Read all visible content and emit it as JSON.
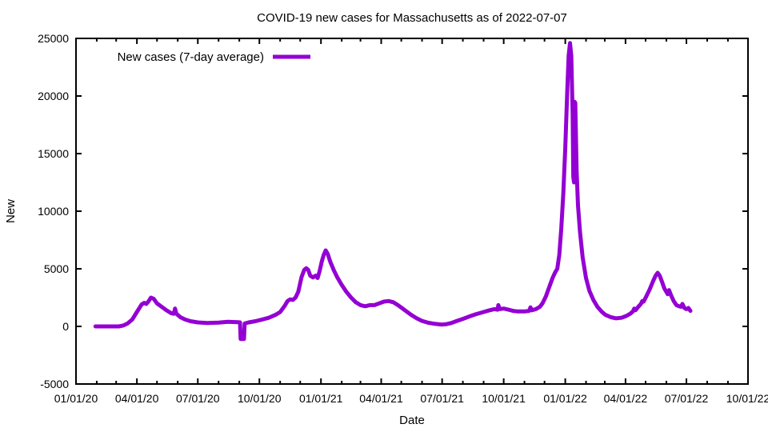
{
  "page": {
    "background": "#ffffff",
    "text_color": "#000000"
  },
  "chart_data": {
    "type": "line",
    "title": "COVID-19 new cases for Massachusetts as of 2022-07-07",
    "xlabel": "Date",
    "ylabel": "New",
    "grid": false,
    "border_color": "#000000",
    "line_width": 5,
    "legend": {
      "position": "top-left-inside",
      "entries": [
        {
          "label": "New cases (7-day average)",
          "color": "#9400d3"
        }
      ]
    },
    "axes": {
      "x": {
        "start_date": "2020-01-01",
        "end_date": "2022-10-01",
        "minor_tick_interval": "month",
        "major_ticks": [
          {
            "date": "2020-01-01",
            "label": "01/01/20"
          },
          {
            "date": "2020-04-01",
            "label": "04/01/20"
          },
          {
            "date": "2020-07-01",
            "label": "07/01/20"
          },
          {
            "date": "2020-10-01",
            "label": "10/01/20"
          },
          {
            "date": "2021-01-01",
            "label": "01/01/21"
          },
          {
            "date": "2021-04-01",
            "label": "04/01/21"
          },
          {
            "date": "2021-07-01",
            "label": "07/01/21"
          },
          {
            "date": "2021-10-01",
            "label": "10/01/21"
          },
          {
            "date": "2022-01-01",
            "label": "01/01/22"
          },
          {
            "date": "2022-04-01",
            "label": "04/01/22"
          },
          {
            "date": "2022-07-01",
            "label": "07/01/22"
          },
          {
            "date": "2022-10-01",
            "label": "10/01/22"
          }
        ]
      },
      "y": {
        "min": -5000,
        "max": 25000,
        "tick_step": 5000,
        "ticks": [
          -5000,
          0,
          5000,
          10000,
          15000,
          20000,
          25000
        ]
      }
    },
    "series": [
      {
        "name": "New cases (7-day average)",
        "color": "#9400d3",
        "points": [
          [
            "2020-01-30",
            0
          ],
          [
            "2020-03-05",
            0
          ],
          [
            "2020-03-12",
            80
          ],
          [
            "2020-03-18",
            250
          ],
          [
            "2020-03-25",
            600
          ],
          [
            "2020-04-01",
            1250
          ],
          [
            "2020-04-08",
            1900
          ],
          [
            "2020-04-12",
            2050
          ],
          [
            "2020-04-15",
            1950
          ],
          [
            "2020-04-18",
            2150
          ],
          [
            "2020-04-22",
            2500
          ],
          [
            "2020-04-26",
            2400
          ],
          [
            "2020-05-01",
            2000
          ],
          [
            "2020-05-08",
            1700
          ],
          [
            "2020-05-15",
            1400
          ],
          [
            "2020-05-22",
            1150
          ],
          [
            "2020-05-26",
            1100
          ],
          [
            "2020-05-28",
            1550
          ],
          [
            "2020-05-30",
            1100
          ],
          [
            "2020-06-05",
            800
          ],
          [
            "2020-06-12",
            600
          ],
          [
            "2020-06-20",
            450
          ],
          [
            "2020-07-01",
            350
          ],
          [
            "2020-07-15",
            300
          ],
          [
            "2020-08-01",
            330
          ],
          [
            "2020-08-15",
            400
          ],
          [
            "2020-08-30",
            370
          ],
          [
            "2020-09-02",
            350
          ],
          [
            "2020-09-03",
            -1100
          ],
          [
            "2020-09-08",
            -1100
          ],
          [
            "2020-09-09",
            250
          ],
          [
            "2020-09-15",
            350
          ],
          [
            "2020-09-25",
            450
          ],
          [
            "2020-10-05",
            600
          ],
          [
            "2020-10-15",
            750
          ],
          [
            "2020-10-25",
            1000
          ],
          [
            "2020-11-01",
            1250
          ],
          [
            "2020-11-08",
            1800
          ],
          [
            "2020-11-12",
            2200
          ],
          [
            "2020-11-16",
            2350
          ],
          [
            "2020-11-20",
            2300
          ],
          [
            "2020-11-24",
            2500
          ],
          [
            "2020-11-28",
            3000
          ],
          [
            "2020-12-03",
            4300
          ],
          [
            "2020-12-07",
            4900
          ],
          [
            "2020-12-10",
            5050
          ],
          [
            "2020-12-13",
            4900
          ],
          [
            "2020-12-16",
            4400
          ],
          [
            "2020-12-20",
            4250
          ],
          [
            "2020-12-24",
            4400
          ],
          [
            "2020-12-27",
            4200
          ],
          [
            "2020-12-30",
            4800
          ],
          [
            "2021-01-02",
            5600
          ],
          [
            "2021-01-05",
            6200
          ],
          [
            "2021-01-08",
            6600
          ],
          [
            "2021-01-11",
            6300
          ],
          [
            "2021-01-15",
            5600
          ],
          [
            "2021-01-20",
            4900
          ],
          [
            "2021-01-25",
            4300
          ],
          [
            "2021-02-01",
            3600
          ],
          [
            "2021-02-08",
            3000
          ],
          [
            "2021-02-15",
            2500
          ],
          [
            "2021-02-22",
            2100
          ],
          [
            "2021-03-01",
            1850
          ],
          [
            "2021-03-08",
            1750
          ],
          [
            "2021-03-15",
            1850
          ],
          [
            "2021-03-22",
            1850
          ],
          [
            "2021-03-29",
            2000
          ],
          [
            "2021-04-05",
            2150
          ],
          [
            "2021-04-12",
            2200
          ],
          [
            "2021-04-19",
            2100
          ],
          [
            "2021-04-26",
            1850
          ],
          [
            "2021-05-03",
            1550
          ],
          [
            "2021-05-10",
            1250
          ],
          [
            "2021-05-17",
            950
          ],
          [
            "2021-05-24",
            700
          ],
          [
            "2021-06-01",
            480
          ],
          [
            "2021-06-10",
            320
          ],
          [
            "2021-06-20",
            220
          ],
          [
            "2021-07-01",
            160
          ],
          [
            "2021-07-08",
            200
          ],
          [
            "2021-07-15",
            300
          ],
          [
            "2021-07-22",
            450
          ],
          [
            "2021-08-01",
            650
          ],
          [
            "2021-08-10",
            850
          ],
          [
            "2021-08-20",
            1050
          ],
          [
            "2021-09-01",
            1250
          ],
          [
            "2021-09-10",
            1400
          ],
          [
            "2021-09-17",
            1500
          ],
          [
            "2021-09-22",
            1450
          ],
          [
            "2021-09-23",
            1850
          ],
          [
            "2021-09-25",
            1500
          ],
          [
            "2021-10-01",
            1550
          ],
          [
            "2021-10-08",
            1450
          ],
          [
            "2021-10-15",
            1350
          ],
          [
            "2021-10-22",
            1300
          ],
          [
            "2021-11-01",
            1300
          ],
          [
            "2021-11-08",
            1350
          ],
          [
            "2021-11-10",
            1650
          ],
          [
            "2021-11-12",
            1400
          ],
          [
            "2021-11-18",
            1500
          ],
          [
            "2021-11-24",
            1700
          ],
          [
            "2021-11-28",
            2000
          ],
          [
            "2021-12-03",
            2600
          ],
          [
            "2021-12-08",
            3400
          ],
          [
            "2021-12-13",
            4200
          ],
          [
            "2021-12-17",
            4700
          ],
          [
            "2021-12-20",
            5000
          ],
          [
            "2021-12-23",
            6200
          ],
          [
            "2021-12-26",
            8500
          ],
          [
            "2021-12-29",
            11500
          ],
          [
            "2022-01-01",
            15500
          ],
          [
            "2022-01-04",
            20500
          ],
          [
            "2022-01-06",
            23500
          ],
          [
            "2022-01-08",
            24600
          ],
          [
            "2022-01-10",
            23500
          ],
          [
            "2022-01-12",
            18500
          ],
          [
            "2022-01-13",
            13000
          ],
          [
            "2022-01-14",
            12500
          ],
          [
            "2022-01-15",
            19500
          ],
          [
            "2022-01-16",
            19400
          ],
          [
            "2022-01-18",
            13500
          ],
          [
            "2022-01-20",
            10500
          ],
          [
            "2022-01-23",
            8200
          ],
          [
            "2022-01-27",
            6000
          ],
          [
            "2022-02-01",
            4200
          ],
          [
            "2022-02-06",
            3100
          ],
          [
            "2022-02-12",
            2300
          ],
          [
            "2022-02-18",
            1700
          ],
          [
            "2022-02-24",
            1300
          ],
          [
            "2022-03-02",
            1000
          ],
          [
            "2022-03-10",
            800
          ],
          [
            "2022-03-18",
            700
          ],
          [
            "2022-03-26",
            750
          ],
          [
            "2022-04-02",
            900
          ],
          [
            "2022-04-08",
            1100
          ],
          [
            "2022-04-12",
            1300
          ],
          [
            "2022-04-14",
            1550
          ],
          [
            "2022-04-16",
            1400
          ],
          [
            "2022-04-20",
            1700
          ],
          [
            "2022-04-24",
            1950
          ],
          [
            "2022-04-26",
            2200
          ],
          [
            "2022-04-28",
            2150
          ],
          [
            "2022-05-02",
            2600
          ],
          [
            "2022-05-07",
            3200
          ],
          [
            "2022-05-12",
            3900
          ],
          [
            "2022-05-16",
            4400
          ],
          [
            "2022-05-19",
            4650
          ],
          [
            "2022-05-22",
            4400
          ],
          [
            "2022-05-26",
            3800
          ],
          [
            "2022-05-29",
            3300
          ],
          [
            "2022-06-01",
            3000
          ],
          [
            "2022-06-03",
            2800
          ],
          [
            "2022-06-05",
            3150
          ],
          [
            "2022-06-08",
            2700
          ],
          [
            "2022-06-12",
            2200
          ],
          [
            "2022-06-16",
            1850
          ],
          [
            "2022-06-20",
            1750
          ],
          [
            "2022-06-23",
            1700
          ],
          [
            "2022-06-25",
            1950
          ],
          [
            "2022-06-28",
            1600
          ],
          [
            "2022-07-01",
            1500
          ],
          [
            "2022-07-04",
            1600
          ],
          [
            "2022-07-07",
            1350
          ]
        ]
      }
    ]
  }
}
